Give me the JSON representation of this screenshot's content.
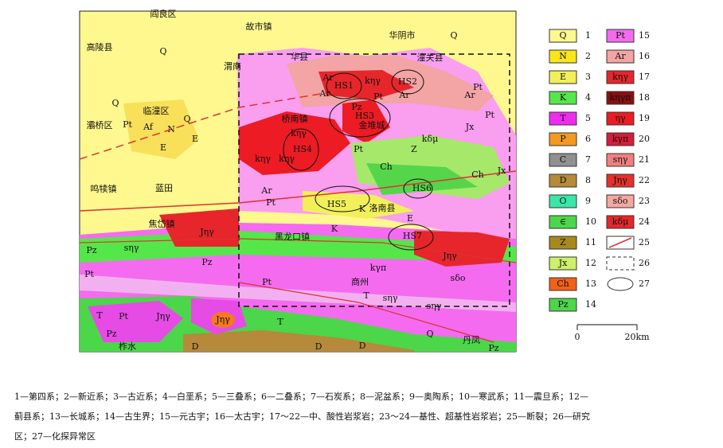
{
  "map": {
    "places": [
      "阎良区",
      "故市镇",
      "华阴市",
      "高陵县",
      "渭南",
      "华县",
      "潼关县",
      "临潼区",
      "灞桥区",
      "桥南镇",
      "金堆城",
      "蓝田",
      "鸣犊镇",
      "洛南县",
      "焦岱镇",
      "黑龙口镇",
      "商州",
      "丹凤",
      "柞水"
    ],
    "anomalies": [
      "HS1",
      "HS2",
      "HS3",
      "HS4",
      "HS5",
      "HS6",
      "HS7"
    ],
    "units": [
      "Q",
      "Q",
      "Q",
      "Q",
      "Ar",
      "kηγ",
      "Ar",
      "Ar",
      "Ar",
      "Pt",
      "Pt",
      "Pt",
      "kηγ",
      "kηγ",
      "kηγ",
      "Pt",
      "Pz",
      "Jx",
      "kδμ",
      "Jx",
      "Z",
      "Ch",
      "Ch",
      "Ar",
      "Pt",
      "K",
      "E",
      "K",
      "Jηγ",
      "Jηγ",
      "Pt",
      "Pz",
      "Pz",
      "Pt",
      "sηγ",
      "Pt",
      "T",
      "kγπ",
      "sηγ",
      "sηγ",
      "sδo",
      "Jηγ",
      "Jηγ",
      "T",
      "D",
      "D",
      "D",
      "Pz",
      "Q",
      "E",
      "N",
      "E",
      "Af",
      "Pt",
      "T",
      "Pz"
    ]
  },
  "legend": {
    "items": [
      {
        "code": "Q",
        "number": 1
      },
      {
        "code": "N",
        "number": 2
      },
      {
        "code": "E",
        "number": 3
      },
      {
        "code": "K",
        "number": 4
      },
      {
        "code": "T",
        "number": 5
      },
      {
        "code": "P",
        "number": 6
      },
      {
        "code": "C",
        "number": 7
      },
      {
        "code": "D",
        "number": 8
      },
      {
        "code": "O",
        "number": 9
      },
      {
        "code": "∈",
        "number": 10
      },
      {
        "code": "Z",
        "number": 11
      },
      {
        "code": "Jx",
        "number": 12
      },
      {
        "code": "Ch",
        "number": 13
      },
      {
        "code": "Pz",
        "number": 14
      },
      {
        "code": "Pt",
        "number": 15
      },
      {
        "code": "Ar",
        "number": 16
      },
      {
        "code": "kηγ",
        "number": 17
      },
      {
        "code": "kηγπ",
        "number": 18
      },
      {
        "code": "ηγ",
        "number": 19
      },
      {
        "code": "kγπ",
        "number": 20
      },
      {
        "code": "sηγ",
        "number": 21
      },
      {
        "code": "Jηγ",
        "number": 22
      },
      {
        "code": "sδo",
        "number": 23
      },
      {
        "code": "kδμ",
        "number": 24
      },
      {
        "number": 25
      },
      {
        "number": 26
      },
      {
        "number": 27
      }
    ]
  },
  "scale": {
    "start": "0",
    "end": "20km"
  },
  "caption": [
    "1—第四系；2—新近系；3—古近系；4—白垩系；5—三叠系；6—二叠系；7—石炭系；8—泥盆系；9—奥陶系；10—寒武系；11—震旦系；12—",
    "蓟县系；13—长城系；14—古生界；15—元古宇；16—太古宇；17～22—中、酸性岩浆岩；23～24—基性、超基性岩浆岩；25—断裂；26—研究",
    "区；27—化探异常区"
  ]
}
